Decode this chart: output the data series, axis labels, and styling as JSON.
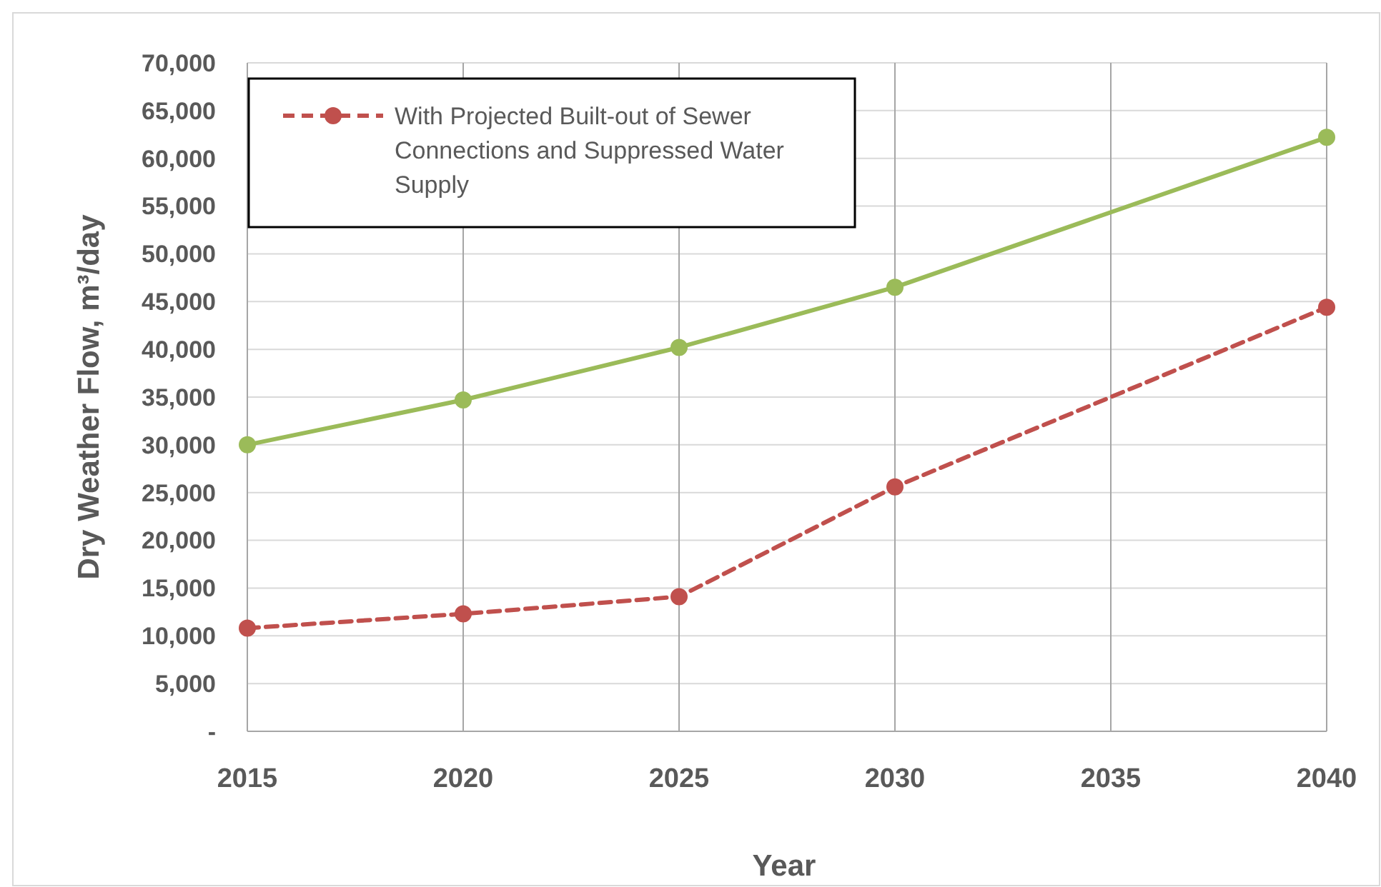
{
  "chart_data": {
    "type": "line",
    "xlabel": "Year",
    "ylabel": "Dry Weather Flow, m³/day",
    "x": [
      2015,
      2020,
      2025,
      2030,
      2040
    ],
    "series": [
      {
        "color": "#9bbb59",
        "line_style": "solid",
        "values": [
          30000,
          34700,
          40200,
          46500,
          62200
        ]
      },
      {
        "name": "With Projected Built-out of Sewer Connections and Suppressed Water Supply",
        "color": "#c0504d",
        "line_style": "dashed",
        "values": [
          10800,
          12300,
          14100,
          25600,
          44400
        ]
      }
    ],
    "xlim": [
      2015,
      2040
    ],
    "xticks": [
      2015,
      2020,
      2025,
      2030,
      2035,
      2040
    ],
    "ylim": [
      0,
      70000
    ],
    "yticks": [
      {
        "value": 0,
        "label": "-"
      },
      {
        "value": 5000,
        "label": "5,000"
      },
      {
        "value": 10000,
        "label": "10,000"
      },
      {
        "value": 15000,
        "label": "15,000"
      },
      {
        "value": 20000,
        "label": "20,000"
      },
      {
        "value": 25000,
        "label": "25,000"
      },
      {
        "value": 30000,
        "label": "30,000"
      },
      {
        "value": 35000,
        "label": "35,000"
      },
      {
        "value": 40000,
        "label": "40,000"
      },
      {
        "value": 45000,
        "label": "45,000"
      },
      {
        "value": 50000,
        "label": "50,000"
      },
      {
        "value": 55000,
        "label": "55,000"
      },
      {
        "value": 60000,
        "label": "60,000"
      },
      {
        "value": 65000,
        "label": "65,000"
      },
      {
        "value": 70000,
        "label": "70,000"
      }
    ],
    "grid": true,
    "legend": "top left",
    "marker": "circle"
  }
}
